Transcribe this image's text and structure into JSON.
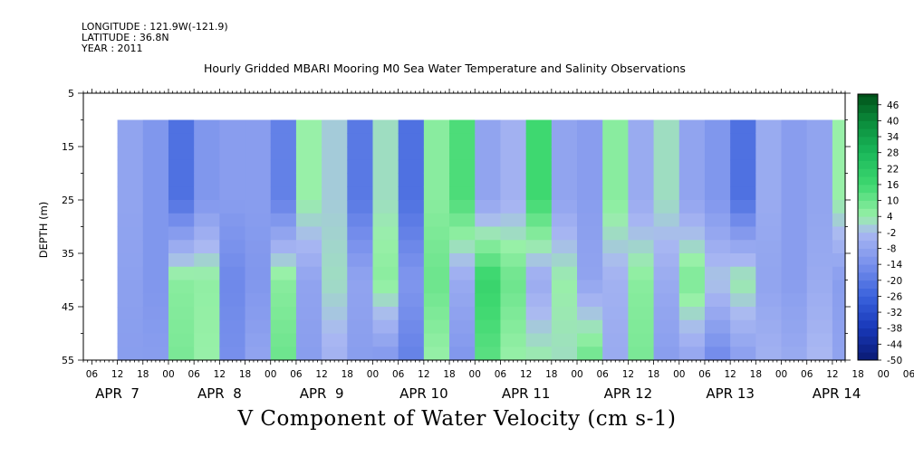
{
  "header": {
    "longitude": "LONGITUDE : 121.9W(-121.9)",
    "latitude": "LATITUDE : 36.8N",
    "year": "YEAR : 2011",
    "title": "Hourly Gridded MBARI Mooring M0 Sea Water Temperature and Salinity Observations"
  },
  "footer": {
    "title": "V Component of Water Velocity (cm s-1)"
  },
  "chart_data": {
    "type": "heatmap",
    "title": "Hourly Gridded MBARI Mooring M0 Sea Water Temperature and Salinity Observations",
    "variable": "V Component of Water Velocity (cm s-1)",
    "units": "cm s-1",
    "ylabel": "DEPTH (m)",
    "y_ticks": [
      5,
      15,
      25,
      35,
      45,
      55
    ],
    "ylim": [
      55,
      5
    ],
    "data_depth_range": [
      10,
      55
    ],
    "x_hour_ticks": [
      "06",
      "12",
      "18",
      "00",
      "06",
      "12",
      "18",
      "00",
      "06",
      "12",
      "18",
      "00",
      "06",
      "12",
      "18",
      "00",
      "06",
      "12",
      "18",
      "00",
      "06",
      "12",
      "18",
      "00",
      "06",
      "12",
      "18",
      "00",
      "06",
      "12",
      "18",
      "00",
      "06"
    ],
    "x_day_labels": [
      "APR  7",
      "APR  8",
      "APR  9",
      "APR 10",
      "APR 11",
      "APR 12",
      "APR 13",
      "APR 14"
    ],
    "time_range": [
      "2011-04-07 04:00",
      "2011-04-14 15:00"
    ],
    "data_time_range": [
      "2011-04-07 12:00",
      "2011-04-14 12:00"
    ],
    "colorbar": {
      "labels": [
        46,
        40,
        34,
        28,
        22,
        16,
        10,
        4,
        -2,
        -8,
        -14,
        -20,
        -26,
        -32,
        -38,
        -44,
        -50
      ],
      "range": [
        -50,
        50
      ],
      "step": 3
    },
    "time_columns": [
      {
        "time": "2011-04-07 12:00",
        "shallow": -8,
        "mid": -9,
        "deep": -10
      },
      {
        "time": "2011-04-07 18:00",
        "shallow": -12,
        "mid": -12,
        "deep": -10
      },
      {
        "time": "2011-04-08 00:00",
        "shallow": -22,
        "mid": 6,
        "deep": 8
      },
      {
        "time": "2011-04-08 06:00",
        "shallow": -12,
        "mid": 5,
        "deep": 4
      },
      {
        "time": "2011-04-08 12:00",
        "shallow": -10,
        "mid": -16,
        "deep": -14
      },
      {
        "time": "2011-04-08 18:00",
        "shallow": -10,
        "mid": -12,
        "deep": -8
      },
      {
        "time": "2011-04-09 00:00",
        "shallow": -18,
        "mid": 6,
        "deep": 10
      },
      {
        "time": "2011-04-09 06:00",
        "shallow": 4,
        "mid": -8,
        "deep": -10
      },
      {
        "time": "2011-04-09 12:00",
        "shallow": 0,
        "mid": 2,
        "deep": -4
      },
      {
        "time": "2011-04-09 18:00",
        "shallow": -20,
        "mid": -8,
        "deep": -10
      },
      {
        "time": "2011-04-10 00:00",
        "shallow": 2,
        "mid": 6,
        "deep": -12
      },
      {
        "time": "2011-04-10 06:00",
        "shallow": -22,
        "mid": -12,
        "deep": -18
      },
      {
        "time": "2011-04-10 12:00",
        "shallow": 6,
        "mid": 10,
        "deep": 4
      },
      {
        "time": "2011-04-10 18:00",
        "shallow": 14,
        "mid": -6,
        "deep": -12
      },
      {
        "time": "2011-04-11 00:00",
        "shallow": -8,
        "mid": 18,
        "deep": 12
      },
      {
        "time": "2011-04-11 06:00",
        "shallow": -4,
        "mid": 10,
        "deep": 4
      },
      {
        "time": "2011-04-11 12:00",
        "shallow": 16,
        "mid": -6,
        "deep": 4
      },
      {
        "time": "2011-04-11 18:00",
        "shallow": -8,
        "mid": 4,
        "deep": 2
      },
      {
        "time": "2011-04-12 00:00",
        "shallow": -10,
        "mid": -8,
        "deep": 10
      },
      {
        "time": "2011-04-12 06:00",
        "shallow": 6,
        "mid": -4,
        "deep": -6
      },
      {
        "time": "2011-04-12 12:00",
        "shallow": -6,
        "mid": 6,
        "deep": 8
      },
      {
        "time": "2011-04-12 18:00",
        "shallow": 2,
        "mid": -6,
        "deep": -10
      },
      {
        "time": "2011-04-13 00:00",
        "shallow": -8,
        "mid": 8,
        "deep": -8
      },
      {
        "time": "2011-04-13 06:00",
        "shallow": -12,
        "mid": 0,
        "deep": -16
      },
      {
        "time": "2011-04-13 12:00",
        "shallow": -22,
        "mid": 4,
        "deep": -10
      },
      {
        "time": "2011-04-13 18:00",
        "shallow": -6,
        "mid": -8,
        "deep": -4
      },
      {
        "time": "2011-04-14 00:00",
        "shallow": -10,
        "mid": -10,
        "deep": -6
      },
      {
        "time": "2011-04-14 06:00",
        "shallow": -8,
        "mid": -6,
        "deep": -2
      },
      {
        "time": "2011-04-14 12:00",
        "shallow": 4,
        "mid": -10,
        "deep": -8
      }
    ]
  }
}
